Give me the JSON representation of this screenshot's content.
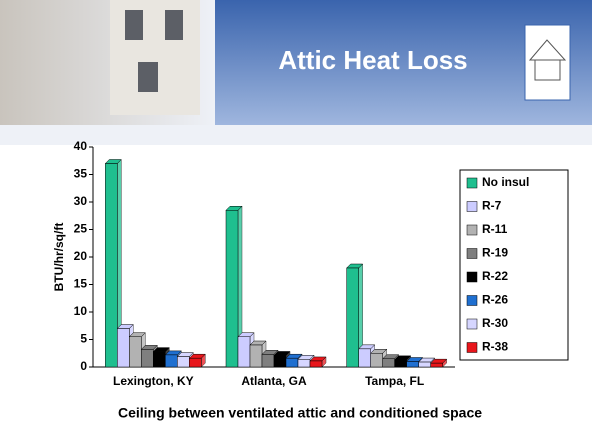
{
  "chart_data": {
    "type": "bar",
    "title": "Attic Heat Loss",
    "y_label": "BTU/hr/sq/ft",
    "footnote": "Ceiling between ventilated attic and conditioned space",
    "categories": [
      "Lexington, KY",
      "Atlanta, GA",
      "Tampa, FL"
    ],
    "series": [
      {
        "name": "No insul",
        "color": "#1fbf8f",
        "values": [
          37,
          28.5,
          18
        ]
      },
      {
        "name": "R-7",
        "color": "#ccccff",
        "values": [
          7,
          5.5,
          3.3
        ]
      },
      {
        "name": "R-11",
        "color": "#b2b2b2",
        "values": [
          5.5,
          4,
          2.5
        ]
      },
      {
        "name": "R-19",
        "color": "#7f7f7f",
        "values": [
          3.2,
          2.3,
          1.5
        ]
      },
      {
        "name": "R-22",
        "color": "#000000",
        "values": [
          2.8,
          2.1,
          1.3
        ]
      },
      {
        "name": "R-26",
        "color": "#1f6fd0",
        "values": [
          2.2,
          1.6,
          1.0
        ]
      },
      {
        "name": "R-30",
        "color": "#d6d6ff",
        "values": [
          1.9,
          1.4,
          0.9
        ]
      },
      {
        "name": "R-38",
        "color": "#e8161b",
        "values": [
          1.6,
          1.1,
          0.7
        ]
      }
    ],
    "ylim": [
      0,
      40
    ],
    "yticks": [
      0,
      5,
      10,
      15,
      20,
      25,
      30,
      35,
      40
    ],
    "grid": false,
    "legend": "right"
  }
}
